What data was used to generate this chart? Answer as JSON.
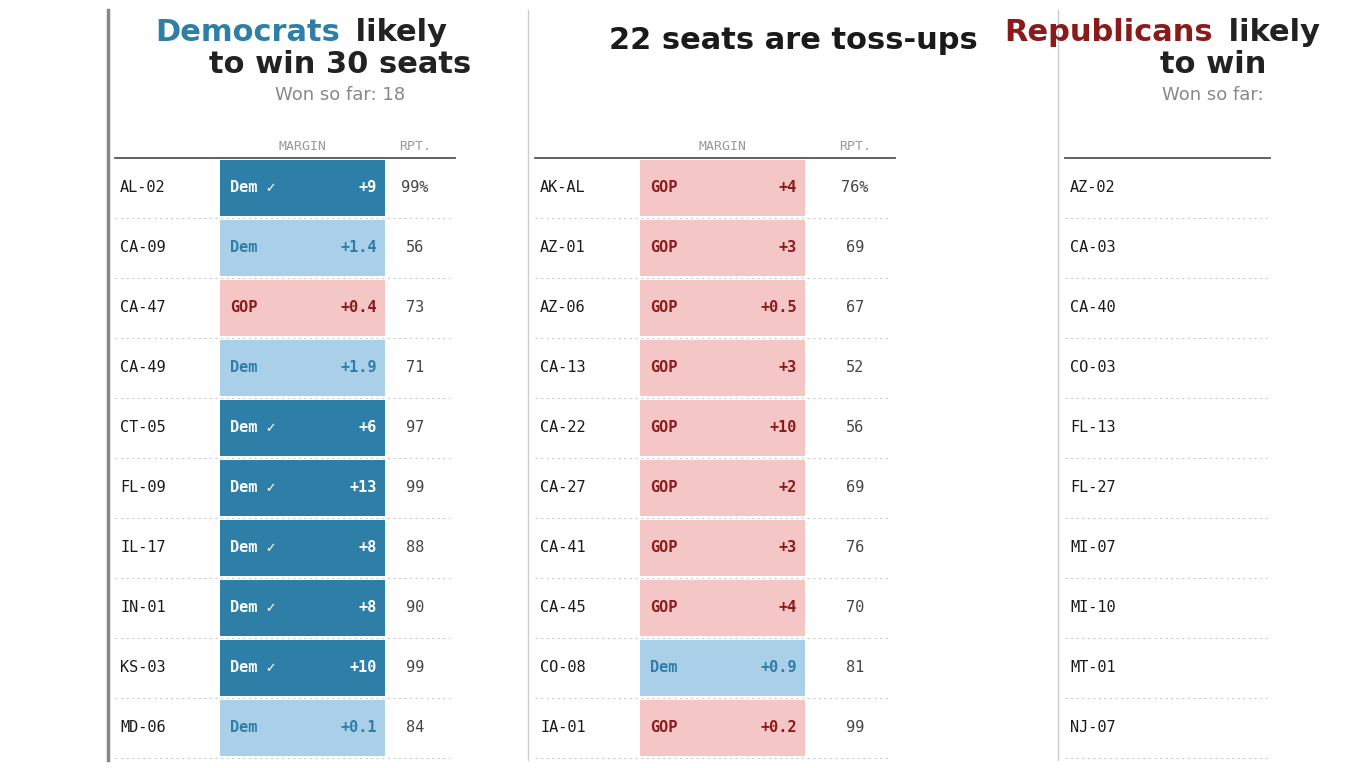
{
  "bg_color": "#ffffff",
  "dem_dark": "#2e7fa8",
  "dem_light": "#aacfe8",
  "gop_dark": "#8b1a1a",
  "gop_light": "#f5c6c6",
  "text_dark": "#1a1a1a",
  "sep_color": "#999999",
  "col1_rows": [
    {
      "district": "AL-02",
      "party": "Dem",
      "called": true,
      "margin": "+9",
      "rpt": "99%",
      "dem": true
    },
    {
      "district": "CA-09",
      "party": "Dem",
      "called": false,
      "margin": "+1.4",
      "rpt": "56",
      "dem": true
    },
    {
      "district": "CA-47",
      "party": "GOP",
      "called": false,
      "margin": "+0.4",
      "rpt": "73",
      "dem": false
    },
    {
      "district": "CA-49",
      "party": "Dem",
      "called": false,
      "margin": "+1.9",
      "rpt": "71",
      "dem": true
    },
    {
      "district": "CT-05",
      "party": "Dem",
      "called": true,
      "margin": "+6",
      "rpt": "97",
      "dem": true
    },
    {
      "district": "FL-09",
      "party": "Dem",
      "called": true,
      "margin": "+13",
      "rpt": "99",
      "dem": true
    },
    {
      "district": "IL-17",
      "party": "Dem",
      "called": true,
      "margin": "+8",
      "rpt": "88",
      "dem": true
    },
    {
      "district": "IN-01",
      "party": "Dem",
      "called": true,
      "margin": "+8",
      "rpt": "90",
      "dem": true
    },
    {
      "district": "KS-03",
      "party": "Dem",
      "called": true,
      "margin": "+10",
      "rpt": "99",
      "dem": true
    },
    {
      "district": "MD-06",
      "party": "Dem",
      "called": false,
      "margin": "+0.1",
      "rpt": "84",
      "dem": true
    }
  ],
  "col2_rows": [
    {
      "district": "AK-AL",
      "party": "GOP",
      "called": false,
      "margin": "+4",
      "rpt": "76%",
      "dem": false
    },
    {
      "district": "AZ-01",
      "party": "GOP",
      "called": false,
      "margin": "+3",
      "rpt": "69",
      "dem": false
    },
    {
      "district": "AZ-06",
      "party": "GOP",
      "called": false,
      "margin": "+0.5",
      "rpt": "67",
      "dem": false
    },
    {
      "district": "CA-13",
      "party": "GOP",
      "called": false,
      "margin": "+3",
      "rpt": "52",
      "dem": false
    },
    {
      "district": "CA-22",
      "party": "GOP",
      "called": false,
      "margin": "+10",
      "rpt": "56",
      "dem": false
    },
    {
      "district": "CA-27",
      "party": "GOP",
      "called": false,
      "margin": "+2",
      "rpt": "69",
      "dem": false
    },
    {
      "district": "CA-41",
      "party": "GOP",
      "called": false,
      "margin": "+3",
      "rpt": "76",
      "dem": false
    },
    {
      "district": "CA-45",
      "party": "GOP",
      "called": false,
      "margin": "+4",
      "rpt": "70",
      "dem": false
    },
    {
      "district": "CO-08",
      "party": "Dem",
      "called": false,
      "margin": "+0.9",
      "rpt": "81",
      "dem": true
    },
    {
      "district": "IA-01",
      "party": "GOP",
      "called": false,
      "margin": "+0.2",
      "rpt": "99",
      "dem": false
    }
  ],
  "col3_rows": [
    {
      "district": "AZ-02"
    },
    {
      "district": "CA-03"
    },
    {
      "district": "CA-40"
    },
    {
      "district": "CO-03"
    },
    {
      "district": "FL-13"
    },
    {
      "district": "FL-27"
    },
    {
      "district": "MI-07"
    },
    {
      "district": "MI-10"
    },
    {
      "district": "MT-01"
    },
    {
      "district": "NJ-07"
    }
  ]
}
